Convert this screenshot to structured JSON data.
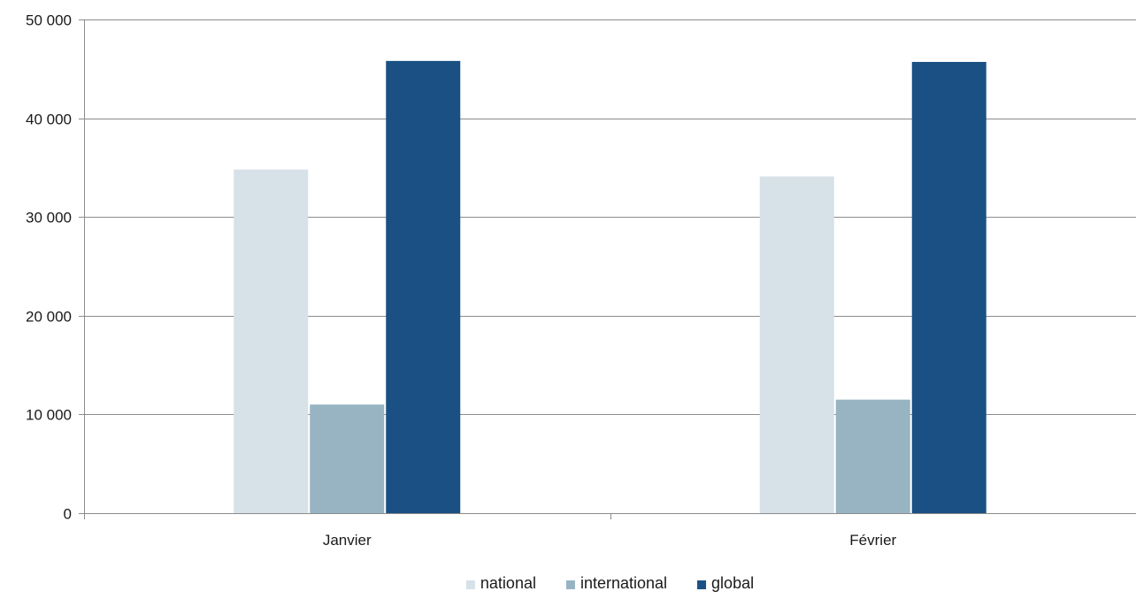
{
  "chart_data": {
    "type": "bar",
    "title": "",
    "xlabel": "",
    "ylabel": "",
    "categories": [
      "Janvier",
      "Février"
    ],
    "series": [
      {
        "name": "national",
        "values": [
          34800,
          34100
        ],
        "color": "#d6e1e8"
      },
      {
        "name": "international",
        "values": [
          11000,
          11500
        ],
        "color": "#98b4c3"
      },
      {
        "name": "global",
        "values": [
          45800,
          45700
        ],
        "color": "#1b5084"
      }
    ],
    "ylim": [
      0,
      50000
    ],
    "yticks": [
      0,
      10000,
      20000,
      30000,
      40000,
      50000
    ],
    "ytick_labels": [
      "0",
      "10 000",
      "20 000",
      "30 000",
      "40 000",
      "50 000"
    ],
    "grid": true,
    "legend_position": "bottom"
  }
}
